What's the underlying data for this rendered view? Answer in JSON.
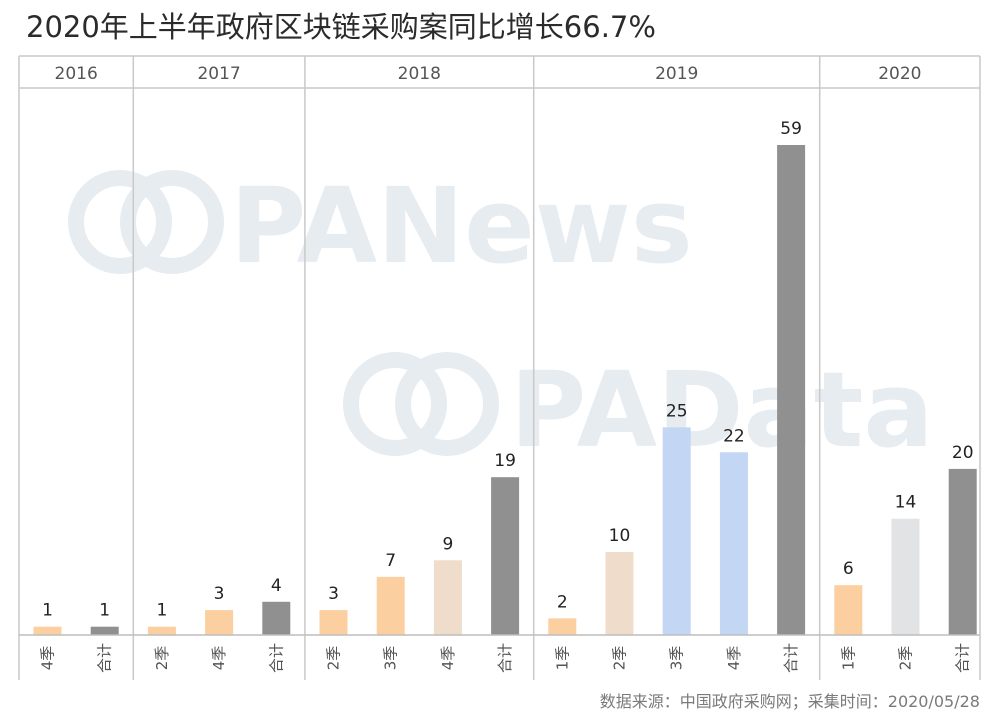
{
  "title": "2020年上半年政府区块链采购案同比增长66.7%",
  "source_note": "数据来源：中国政府采购网；采集时间：2020/05/28",
  "watermarks": [
    "PANews",
    "PAData"
  ],
  "colors": {
    "orange": "#fbcf9f",
    "beige": "#efdccb",
    "blue": "#c3d6f3",
    "darkgray": "#909090",
    "lightgray": "#e2e3e5"
  },
  "chart_data": {
    "type": "bar",
    "groups": [
      {
        "year": "2016",
        "bars": [
          {
            "label": "4季",
            "value": 1,
            "color": "orange"
          },
          {
            "label": "合计",
            "value": 1,
            "color": "darkgray"
          }
        ]
      },
      {
        "year": "2017",
        "bars": [
          {
            "label": "2季",
            "value": 1,
            "color": "orange"
          },
          {
            "label": "4季",
            "value": 3,
            "color": "orange"
          },
          {
            "label": "合计",
            "value": 4,
            "color": "darkgray"
          }
        ]
      },
      {
        "year": "2018",
        "bars": [
          {
            "label": "2季",
            "value": 3,
            "color": "orange"
          },
          {
            "label": "3季",
            "value": 7,
            "color": "orange"
          },
          {
            "label": "4季",
            "value": 9,
            "color": "beige"
          },
          {
            "label": "合计",
            "value": 19,
            "color": "darkgray"
          }
        ]
      },
      {
        "year": "2019",
        "bars": [
          {
            "label": "1季",
            "value": 2,
            "color": "orange"
          },
          {
            "label": "2季",
            "value": 10,
            "color": "beige"
          },
          {
            "label": "3季",
            "value": 25,
            "color": "blue"
          },
          {
            "label": "4季",
            "value": 22,
            "color": "blue"
          },
          {
            "label": "合计",
            "value": 59,
            "color": "darkgray"
          }
        ]
      },
      {
        "year": "2020",
        "bars": [
          {
            "label": "1季",
            "value": 6,
            "color": "orange"
          },
          {
            "label": "2季",
            "value": 14,
            "color": "lightgray"
          },
          {
            "label": "合计",
            "value": 20,
            "color": "darkgray"
          }
        ]
      }
    ],
    "ylim": [
      0,
      59
    ],
    "legend": "none",
    "grid": false
  }
}
